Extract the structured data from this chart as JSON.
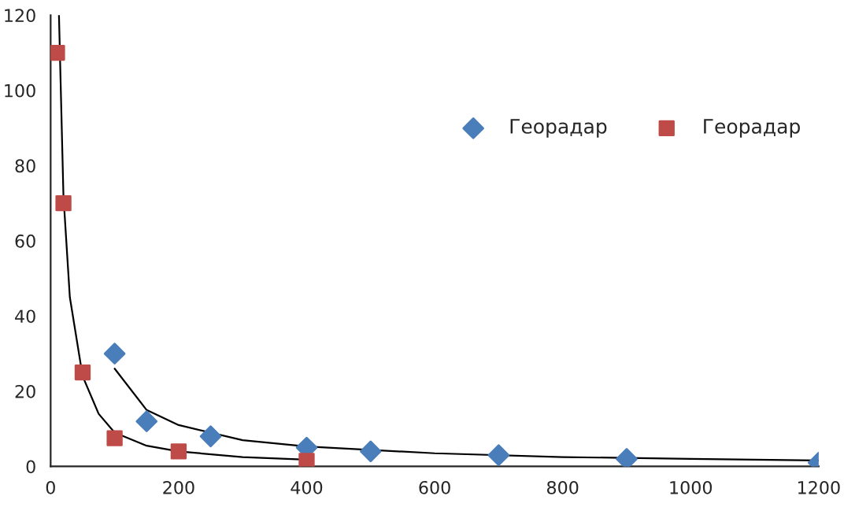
{
  "chart_data": {
    "type": "scatter",
    "xlim": [
      0,
      1200
    ],
    "ylim": [
      0,
      120
    ],
    "xticks": [
      0,
      200,
      400,
      600,
      800,
      1000,
      1200
    ],
    "yticks": [
      0,
      20,
      40,
      60,
      80,
      100,
      120
    ],
    "grid": false,
    "legend": "right",
    "series": [
      {
        "name": "Георадар",
        "color": "#4a7ebb",
        "marker": "diamond",
        "x": [
          100,
          150,
          250,
          400,
          500,
          700,
          900,
          1200
        ],
        "values": [
          30,
          12,
          8,
          5,
          4,
          3,
          2,
          1
        ]
      },
      {
        "name": "Георадар",
        "color": "#be4b48",
        "marker": "square",
        "x": [
          10,
          20,
          50,
          100,
          200,
          400
        ],
        "values": [
          110,
          70,
          25,
          7.5,
          4,
          1.5
        ]
      },
      {
        "type": "line",
        "color": "#000000",
        "x": [
          100,
          150,
          200,
          300,
          400,
          600,
          800,
          1000,
          1200
        ],
        "values": [
          26,
          15,
          11,
          7,
          5.3,
          3.5,
          2.5,
          2,
          1.6
        ]
      },
      {
        "type": "line",
        "color": "#000000",
        "x": [
          13,
          20,
          30,
          50,
          75,
          100,
          150,
          200,
          300,
          400
        ],
        "values": [
          120,
          72,
          45,
          24,
          14,
          9,
          5.5,
          4,
          2.5,
          1.8
        ]
      }
    ]
  }
}
